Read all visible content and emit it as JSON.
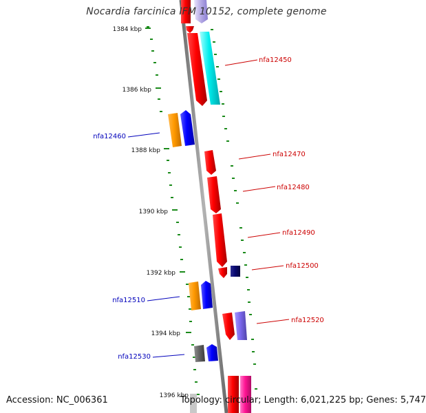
{
  "title": "Nocardia farcinica IFM 10152, complete genome",
  "accession_text": "Accession: NC_006361",
  "summary_text": "Topology: circular; Length: 6,021,225 bp; Genes: 5,747",
  "colors": {
    "backbone": "#8c8c8c",
    "tick": "#1a8a1a",
    "forward_label": "#cc0000",
    "reverse_label": "#0000bb"
  },
  "kbp_labels": [
    "1384 kbp",
    "1386 kbp",
    "1388 kbp",
    "1390 kbp",
    "1392 kbp",
    "1394 kbp",
    "1396 kbp"
  ],
  "gene_labels": {
    "forward": [
      "nfa12450",
      "nfa12470",
      "nfa12480",
      "nfa12490",
      "nfa12500",
      "nfa12520"
    ],
    "reverse": [
      "nfa12460",
      "nfa12510",
      "nfa12530"
    ]
  },
  "block_colors": [
    "red",
    "cyan",
    "orange",
    "blue",
    "navy",
    "slate-blue",
    "gray",
    "magenta",
    "lavender"
  ]
}
